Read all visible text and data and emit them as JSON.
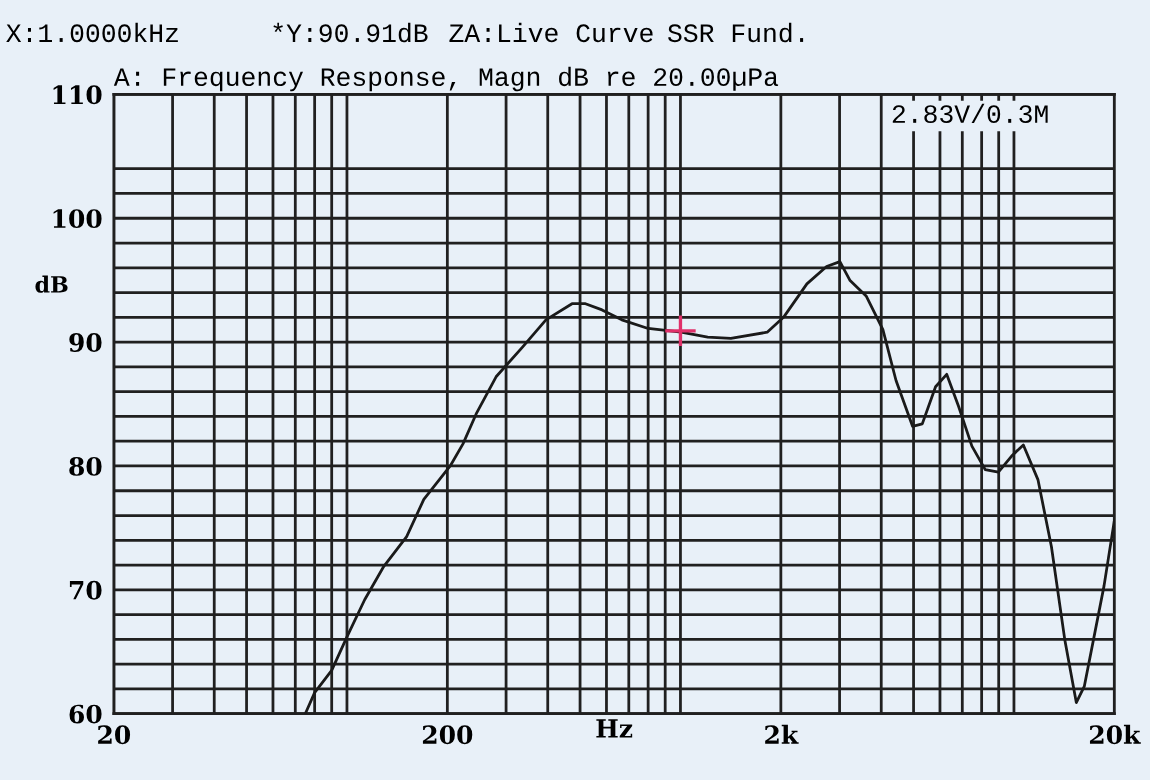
{
  "chart_data": {
    "type": "line",
    "title": "A: Frequency Response, Magn dB re 20.00µPa",
    "xlabel": "Hz",
    "ylabel": "dB",
    "annotations": [
      "X:1.0000kHz",
      "*Y:90.91dB",
      "ZA:Live Curve",
      "SSR Fund.",
      "2.83V/0.3M"
    ],
    "log": "x",
    "grid": true,
    "marker": "none",
    "line_style": "solid",
    "xlim": [
      20,
      20000
    ],
    "ylim": [
      60,
      110
    ],
    "xticks": [
      20,
      {
        "value": 30,
        "label": null
      },
      {
        "value": 40,
        "label": null
      },
      {
        "value": 50,
        "label": null
      },
      {
        "value": 60,
        "label": null
      },
      {
        "value": 70,
        "label": null
      },
      {
        "value": 80,
        "label": null
      },
      {
        "value": 90,
        "label": null
      },
      {
        "value": 100,
        "label": null
      },
      200,
      {
        "value": 300,
        "label": null
      },
      {
        "value": 400,
        "label": null
      },
      {
        "value": 500,
        "label": null
      },
      {
        "value": 600,
        "label": null
      },
      {
        "value": 700,
        "label": null
      },
      {
        "value": 800,
        "label": null
      },
      {
        "value": 900,
        "label": null
      },
      {
        "value": 1000,
        "label": null
      },
      {
        "value": 2000,
        "label": "2k"
      },
      {
        "value": 3000,
        "label": null
      },
      {
        "value": 4000,
        "label": null
      },
      {
        "value": 5000,
        "label": null
      },
      {
        "value": 6000,
        "label": null
      },
      {
        "value": 7000,
        "label": null
      },
      {
        "value": 8000,
        "label": null
      },
      {
        "value": 9000,
        "label": null
      },
      {
        "value": 10000,
        "label": null
      },
      {
        "value": 20000,
        "label": "20k"
      }
    ],
    "yticks": [
      60,
      {
        "value": 62,
        "label": null
      },
      {
        "value": 64,
        "label": null
      },
      {
        "value": 66,
        "label": null
      },
      {
        "value": 68,
        "label": null
      },
      70,
      {
        "value": 72,
        "label": null
      },
      {
        "value": 74,
        "label": null
      },
      {
        "value": 76,
        "label": null
      },
      {
        "value": 78,
        "label": null
      },
      80,
      {
        "value": 82,
        "label": null
      },
      {
        "value": 84,
        "label": null
      },
      {
        "value": 86,
        "label": null
      },
      {
        "value": 88,
        "label": null
      },
      90,
      {
        "value": 92,
        "label": null
      },
      {
        "value": 94,
        "label": null
      },
      {
        "value": 96,
        "label": null
      },
      {
        "value": 98,
        "label": null
      },
      100,
      {
        "value": 102,
        "label": null
      },
      {
        "value": 104,
        "label": null
      },
      110
    ],
    "series": [
      {
        "type": "line",
        "color": "#1a1a1a",
        "x": [
          75,
          80,
          90,
          100,
          113,
          129,
          151,
          170,
          204,
          223,
          244,
          280,
          336,
          395,
          473,
          519,
          582,
          667,
          800,
          1004,
          1207,
          1416,
          1820,
          2037,
          2394,
          2743,
          3007,
          3220,
          3610,
          4046,
          4430,
          4965,
          5310,
          5820,
          6285,
          6825,
          7480,
          8200,
          8980,
          9840,
          10670,
          11800,
          12950,
          14200,
          15380,
          16250,
          18620,
          20000
        ],
        "values": [
          60.0,
          61.7,
          63.5,
          66.2,
          69.2,
          71.9,
          74.3,
          77.3,
          80.0,
          81.8,
          84.2,
          87.2,
          89.6,
          91.8,
          93.1,
          93.1,
          92.6,
          91.8,
          91.1,
          90.8,
          90.4,
          90.3,
          90.8,
          92.0,
          94.7,
          96.1,
          96.5,
          95.0,
          93.7,
          91.0,
          86.9,
          83.2,
          83.4,
          86.4,
          87.4,
          84.8,
          81.6,
          79.7,
          79.5,
          80.8,
          81.7,
          78.9,
          73.5,
          66.0,
          60.9,
          62.2,
          70.3,
          75.6
        ]
      },
      {
        "type": "scatter",
        "color": "#e0306a",
        "marker": "cross",
        "x": [
          1000
        ],
        "values": [
          90.91
        ]
      }
    ]
  }
}
